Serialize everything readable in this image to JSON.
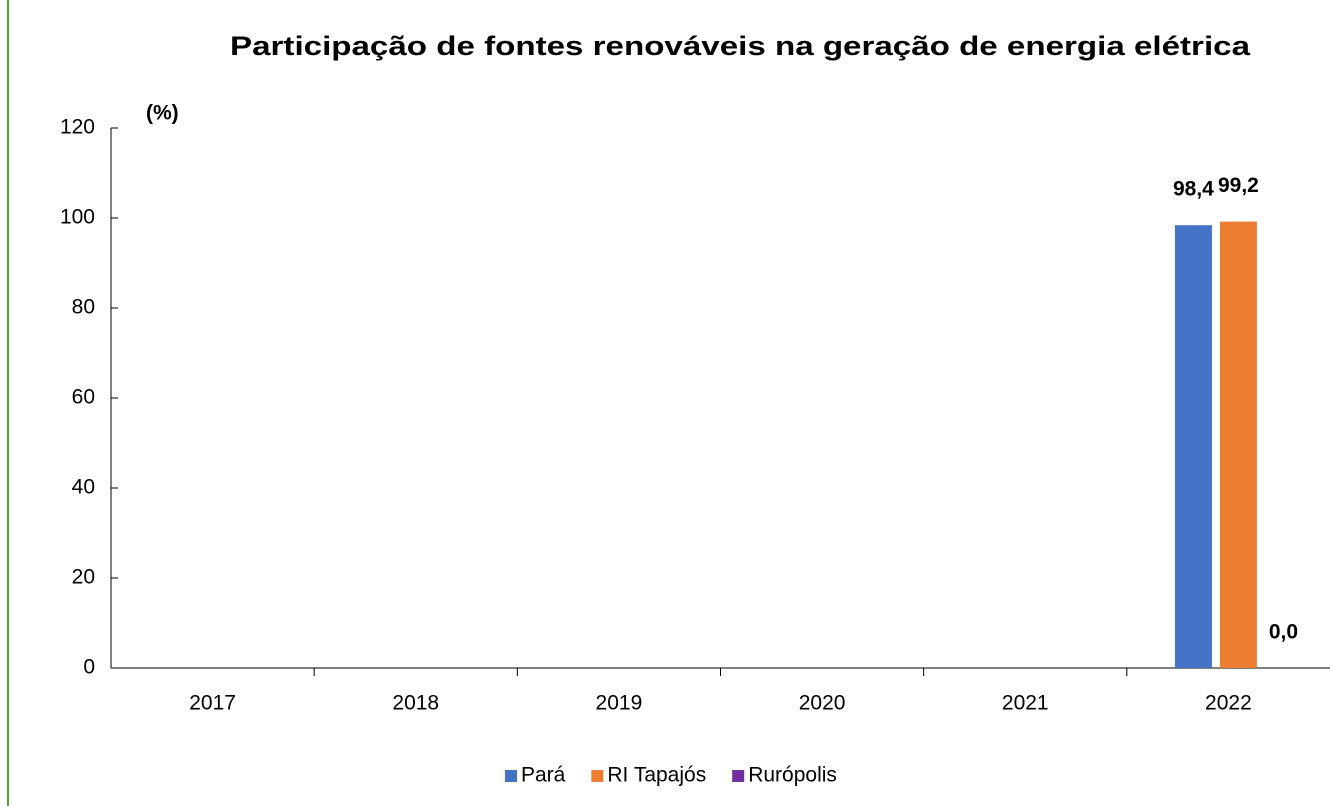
{
  "chart_data": {
    "type": "bar",
    "title": "Participação de fontes renováveis na geração de energia elétrica",
    "y_label": "(%)",
    "categories": [
      "2017",
      "2018",
      "2019",
      "2020",
      "2021",
      "2022"
    ],
    "series": [
      {
        "name": "Pará",
        "color": "#4472c4",
        "values": [
          null,
          null,
          null,
          null,
          null,
          98.4
        ],
        "value_labels": [
          null,
          null,
          null,
          null,
          null,
          "98,4"
        ]
      },
      {
        "name": "RI Tapajós",
        "color": "#ed7d31",
        "values": [
          null,
          null,
          null,
          null,
          null,
          99.2
        ],
        "value_labels": [
          null,
          null,
          null,
          null,
          null,
          "99,2"
        ]
      },
      {
        "name": "Rurópolis",
        "color": "#7030a0",
        "values": [
          null,
          null,
          null,
          null,
          null,
          0.0
        ],
        "value_labels": [
          null,
          null,
          null,
          null,
          null,
          "0,0"
        ]
      }
    ],
    "ylim": [
      0,
      120
    ],
    "yticks": [
      0,
      20,
      40,
      60,
      80,
      100,
      120
    ],
    "grid": false,
    "legend": "bottom"
  }
}
